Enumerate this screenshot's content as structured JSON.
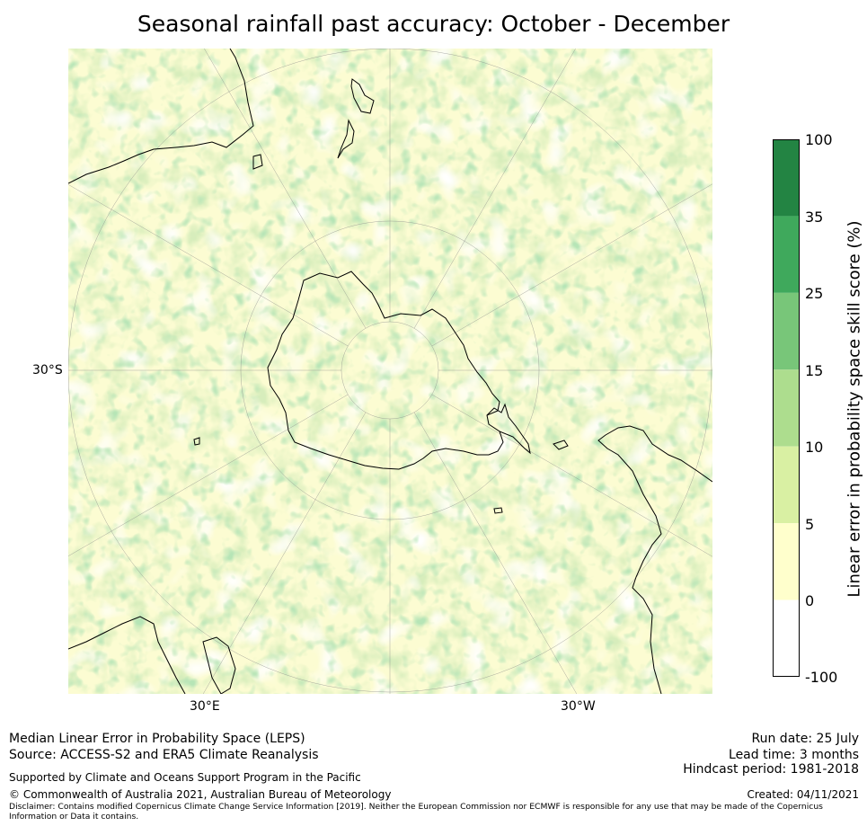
{
  "title": "Seasonal rainfall past accuracy: October - December",
  "map": {
    "projection": "south-polar-stereographic",
    "lat_label": "30°S",
    "lon_labels": [
      "30°E",
      "30°W"
    ]
  },
  "colorbar": {
    "label": "Linear error in probability space skill score (%)",
    "ticks": [
      "100",
      "35",
      "25",
      "15",
      "10",
      "5",
      "0",
      "-100"
    ],
    "bins": [
      {
        "range": "25 to 35",
        "color": "#3fa95c"
      },
      {
        "range": "35 to 100",
        "color": "#238443"
      },
      {
        "range": "15 to 25",
        "color": "#78c679"
      },
      {
        "range": "10 to 15",
        "color": "#addd8e"
      },
      {
        "range": "5 to 10",
        "color": "#d9f0a3"
      },
      {
        "range": "0 to 5",
        "color": "#ffffcc"
      },
      {
        "range": "-100 to 0",
        "color": "#ffffff"
      }
    ]
  },
  "footer": {
    "line1": "Median Linear Error in Probability Space (LEPS)",
    "line2": "Source: ACCESS-S2 and ERA5 Climate Reanalysis",
    "supported": "Supported by Climate and Oceans Support Program in the Pacific",
    "copyright": "© Commonwealth of Australia 2021, Australian Bureau of Meteorology",
    "disclaimer": "Disclaimer: Contains modified Copernicus Climate Change Service Information [2019]. Neither the European Commission nor ECMWF is responsible for any use that may be made of the Copernicus Information or Data it contains.",
    "run_date": "Run date: 25 July",
    "lead_time": "Lead time: 3 months",
    "hindcast": "Hindcast period: 1981-2018",
    "created": "Created: 04/11/2021"
  }
}
